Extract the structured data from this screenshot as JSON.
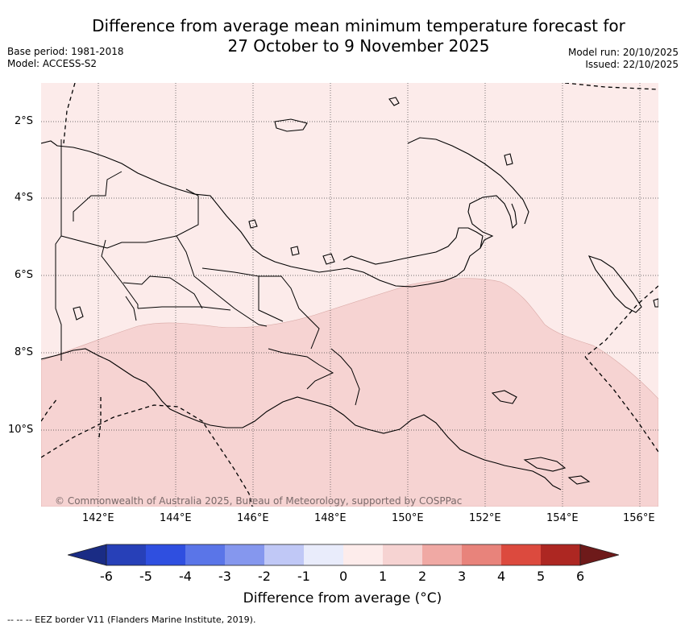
{
  "title_line1": "Difference from average mean minimum temperature forecast for",
  "title_line2": "27 October to 9 November 2025",
  "base_period": "Base period: 1981-2018",
  "model": "Model: ACCESS-S2",
  "model_run": "Model run: 20/10/2025",
  "issued": "Issued: 22/10/2025",
  "lat_labels": [
    "2°S",
    "4°S",
    "6°S",
    "8°S",
    "10°S"
  ],
  "lon_labels": [
    "142°E",
    "144°E",
    "146°E",
    "148°E",
    "150°E",
    "152°E",
    "154°E",
    "156°E"
  ],
  "attribution": "© Commonwealth of Australia 2025, Bureau of Meteorology, supported by COSPPac",
  "colorbar": {
    "tick_labels": [
      "-6",
      "-5",
      "-4",
      "-3",
      "-2",
      "-1",
      "0",
      "1",
      "2",
      "3",
      "4",
      "5",
      "6"
    ],
    "colors": [
      "#1a2c85",
      "#2740b8",
      "#2f4fe0",
      "#5a75e8",
      "#8597ee",
      "#c0c8f6",
      "#e9ecfb",
      "#fdeceb",
      "#f6d3d2",
      "#f0a9a4",
      "#e8837b",
      "#dc4a3e",
      "#ad2722",
      "#6e1a1a"
    ],
    "title": "Difference from average (°C)"
  },
  "footer": "--  --  -- EEZ border V11 (Flanders Marine Institute, 2019).",
  "map_colors": {
    "light": "#fcebea",
    "medium": "#f6d3d2"
  }
}
